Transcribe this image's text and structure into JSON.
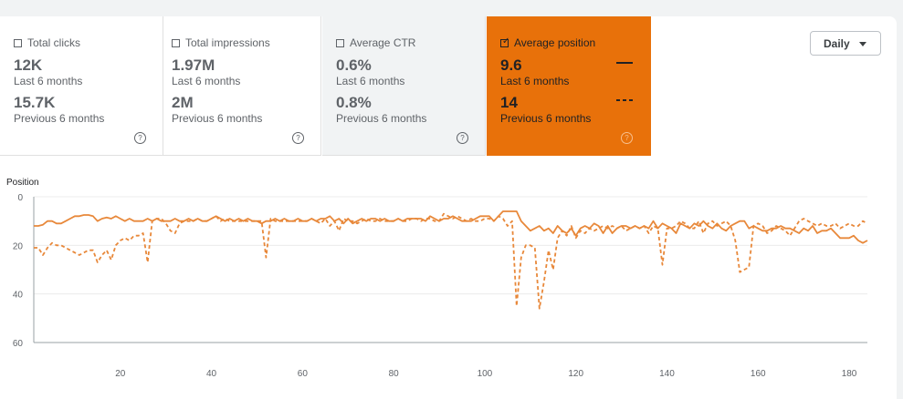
{
  "metrics": [
    {
      "label": "Total clicks",
      "value": "12K",
      "period": "Last 6 months",
      "prev_value": "15.7K",
      "prev_period": "Previous 6 months",
      "checked": false
    },
    {
      "label": "Total impressions",
      "value": "1.97M",
      "period": "Last 6 months",
      "prev_value": "2M",
      "prev_period": "Previous 6 months",
      "checked": false
    },
    {
      "label": "Average CTR",
      "value": "0.6%",
      "period": "Last 6 months",
      "prev_value": "0.8%",
      "prev_period": "Previous 6 months",
      "checked": false
    },
    {
      "label": "Average position",
      "value": "9.6",
      "period": "Last 6 months",
      "prev_value": "14",
      "prev_period": "Previous 6 months",
      "checked": true
    }
  ],
  "checkbox_mark": "✓",
  "help_glyph": "?",
  "colors": {
    "accent": "#e8710a",
    "series": "#e8883a"
  },
  "granularity": "Daily",
  "chart_data": {
    "type": "line",
    "ylabel": "Position",
    "ylim": [
      0,
      60
    ],
    "y_inverted": true,
    "yticks": [
      0,
      20,
      40,
      60
    ],
    "xticks": [
      20,
      40,
      60,
      80,
      100,
      120,
      140,
      160,
      180
    ],
    "xlim": [
      1,
      184
    ],
    "grid": true,
    "series": [
      {
        "style": "solid",
        "values": [
          12,
          12,
          11.5,
          10,
          10,
          11,
          11,
          10,
          9,
          8,
          8,
          7.5,
          7.5,
          8,
          10,
          9,
          8.5,
          9,
          8,
          9,
          10,
          9,
          10,
          10,
          10,
          9,
          10,
          9,
          10,
          10,
          10,
          9,
          10,
          10,
          9,
          10,
          9,
          10,
          10,
          9,
          8,
          9,
          10,
          9,
          10,
          9,
          10,
          9,
          10,
          10,
          11,
          10,
          10,
          9,
          10,
          9,
          10,
          10,
          9,
          10,
          10,
          9,
          10,
          9,
          9,
          8,
          10,
          9,
          11,
          9,
          11,
          10,
          9,
          10,
          9,
          9,
          10,
          9,
          10,
          10,
          9,
          10,
          9,
          9,
          9,
          9,
          10,
          8,
          9,
          10,
          9,
          9,
          8,
          9,
          10,
          10,
          10,
          9,
          8,
          8,
          8,
          10,
          8,
          6,
          6,
          6,
          6,
          10,
          12,
          14,
          13,
          12,
          14,
          13,
          15,
          12,
          14,
          15,
          13,
          16,
          13,
          12,
          13,
          11,
          12,
          15,
          12,
          15,
          13,
          12,
          12,
          13,
          12,
          13,
          12,
          13,
          10,
          13,
          11,
          12,
          13,
          15,
          11,
          12,
          13,
          11,
          12,
          10,
          12,
          13,
          11,
          13,
          14,
          12,
          11,
          10,
          10,
          13,
          12,
          13,
          14,
          14,
          13,
          13,
          12,
          13,
          13,
          14,
          15,
          13,
          14,
          12,
          15,
          14,
          14,
          13,
          15,
          17,
          17,
          17,
          16,
          18,
          19,
          18
        ]
      },
      {
        "style": "dashed",
        "values": [
          21,
          21,
          24,
          21,
          19,
          20,
          20,
          21,
          22,
          23,
          24,
          23,
          22,
          22,
          27,
          24,
          22,
          26,
          20,
          18,
          17,
          18,
          16,
          16,
          15,
          27,
          10,
          9,
          9,
          11,
          14,
          15,
          11,
          10,
          10,
          10,
          9,
          10,
          10,
          9,
          8,
          10,
          9,
          10,
          10,
          10,
          10,
          10,
          10,
          10,
          10,
          25,
          9,
          10,
          10,
          10,
          10,
          10,
          10,
          10,
          10,
          9,
          10,
          11,
          9,
          12,
          10,
          14,
          9,
          10,
          10,
          11,
          10,
          9,
          10,
          10,
          9,
          10,
          10,
          10,
          9,
          10,
          10,
          9,
          9,
          10,
          9,
          9,
          10,
          10,
          7,
          8,
          9,
          8,
          9,
          10,
          9,
          10,
          10,
          9,
          9,
          10,
          8,
          9,
          12,
          10,
          45,
          25,
          20,
          20,
          21,
          46,
          35,
          22,
          30,
          17,
          14,
          16,
          12,
          17,
          14,
          15,
          13,
          14,
          13,
          12,
          13,
          12,
          13,
          12,
          14,
          13,
          12,
          13,
          12,
          15,
          12,
          13,
          28,
          13,
          13,
          12,
          10,
          11,
          13,
          13,
          10,
          15,
          11,
          10,
          12,
          11,
          10,
          12,
          18,
          31,
          30,
          29,
          12,
          11,
          12,
          15,
          14,
          12,
          13,
          14,
          16,
          13,
          10,
          9,
          10,
          11,
          12,
          11,
          12,
          12,
          11,
          13,
          12,
          11,
          12,
          12,
          10,
          11
        ]
      }
    ]
  }
}
